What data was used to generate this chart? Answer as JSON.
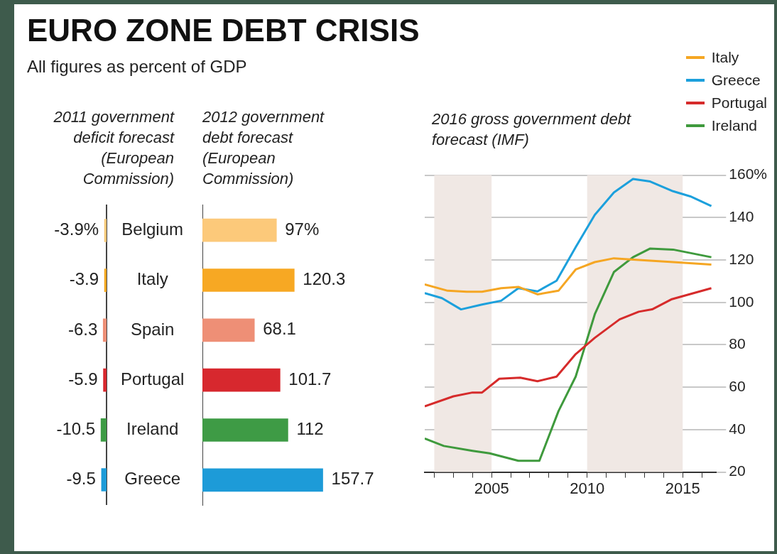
{
  "chart_data": [
    {
      "type": "other",
      "title": "EURO ZONE DEBT CRISIS",
      "subtitle": "All figures as percent of GDP"
    },
    {
      "type": "bar",
      "orientation": "horizontal",
      "title": "2011 government deficit forecast (European Commission)",
      "categories": [
        "Belgium",
        "Italy",
        "Spain",
        "Portugal",
        "Ireland",
        "Greece"
      ],
      "tick_labels": "y",
      "values": [
        -3.9,
        -3.9,
        -6.3,
        -5.9,
        -10.5,
        -9.5
      ],
      "colors": [
        "#fcc97a",
        "#f7a823",
        "#ee8f76",
        "#d7282e",
        "#3e9b45",
        "#1d9bd8"
      ],
      "value_labels": [
        "-3.9%",
        "-3.9",
        "-6.3",
        "-5.9",
        "-10.5",
        "-9.5"
      ]
    },
    {
      "type": "bar",
      "orientation": "horizontal",
      "title": "2012 government debt forecast (European Commission)",
      "categories": [
        null,
        null,
        null,
        null,
        null,
        null
      ],
      "tick_labels": false,
      "values": [
        97,
        120.3,
        68.1,
        101.7,
        112,
        157.7
      ],
      "colors": [
        "#fcc97a",
        "#f7a823",
        "#ee8f76",
        "#d7282e",
        "#3e9b45",
        "#1d9bd8"
      ],
      "value_labels": [
        "97%",
        "120.3",
        "68.1",
        "101.7",
        "112",
        "157.7"
      ]
    },
    {
      "type": "line",
      "title": "2016 gross government debt forecast (IMF)",
      "legend": "top right",
      "grid": "y",
      "xlim": [
        2001.5,
        2016.75
      ],
      "xticks": [
        {
          "value": 2002,
          "label": null
        },
        {
          "value": 2003,
          "label": null
        },
        {
          "value": 2004,
          "label": null
        },
        2005,
        {
          "value": 2006,
          "label": null
        },
        {
          "value": 2007,
          "label": null
        },
        {
          "value": 2008,
          "label": null
        },
        {
          "value": 2009,
          "label": null
        },
        2010,
        {
          "value": 2011,
          "label": null
        },
        {
          "value": 2012,
          "label": null
        },
        {
          "value": 2013,
          "label": null
        },
        {
          "value": 2014,
          "label": null
        },
        2015,
        {
          "value": 2016,
          "label": null
        }
      ],
      "ylim": [
        20,
        160
      ],
      "yticks": [
        20,
        40,
        60,
        80,
        100,
        120,
        140,
        {
          "value": 160,
          "label": "160%"
        }
      ],
      "bands": [
        {
          "axis": "x",
          "from": 2002,
          "to": 2005,
          "color": "#f0e8e4"
        },
        {
          "axis": "x",
          "from": 2010,
          "to": 2015,
          "color": "#f0e8e4"
        }
      ],
      "series": [
        {
          "name": "Italy",
          "color": "#f5a623",
          "x": [
            2001.5,
            2002.7,
            2003.7,
            2004.5,
            2005.5,
            2006.4,
            2007.4,
            2008.5,
            2009.4,
            2010.4,
            2011.4,
            2012.4,
            2014.5,
            2016.5
          ],
          "values": [
            108.5,
            105.5,
            105,
            105,
            106.7,
            107.3,
            103.8,
            105.5,
            115.5,
            119,
            120.8,
            120.2,
            119,
            117.8
          ]
        },
        {
          "name": "Greece",
          "color": "#1ca0dc",
          "x": [
            2001.5,
            2002.4,
            2003.4,
            2004.5,
            2005.5,
            2006.4,
            2007.4,
            2008.4,
            2009.4,
            2010.4,
            2011.4,
            2012.4,
            2013.3,
            2014.5,
            2015.4,
            2016.5
          ],
          "values": [
            104.4,
            102,
            96.7,
            99,
            100.8,
            106.7,
            105.2,
            110.2,
            126,
            141.3,
            151.8,
            158.2,
            157,
            152.4,
            150,
            145.4
          ]
        },
        {
          "name": "Portugal",
          "color": "#d62b2b",
          "x": [
            2001.5,
            2003,
            2004,
            2004.5,
            2005.4,
            2006.5,
            2007.4,
            2008.4,
            2009.4,
            2010.4,
            2011.7,
            2012.7,
            2013.4,
            2014.4,
            2016.5
          ],
          "values": [
            51,
            55.7,
            57.5,
            57.5,
            64,
            64.5,
            62.8,
            65,
            75.6,
            83.3,
            92,
            95.6,
            96.7,
            101.4,
            106.7
          ]
        },
        {
          "name": "Ireland",
          "color": "#3f9a3d",
          "x": [
            2001.5,
            2002.5,
            2004,
            2004.9,
            2006.4,
            2007.5,
            2008.5,
            2009.4,
            2010.4,
            2011.4,
            2012.4,
            2013.3,
            2014.5,
            2016.5
          ],
          "values": [
            35.8,
            32.3,
            30,
            28.8,
            25.3,
            25.3,
            48.7,
            65,
            94.4,
            114.3,
            121.3,
            125.4,
            124.9,
            121.3
          ]
        }
      ]
    }
  ]
}
